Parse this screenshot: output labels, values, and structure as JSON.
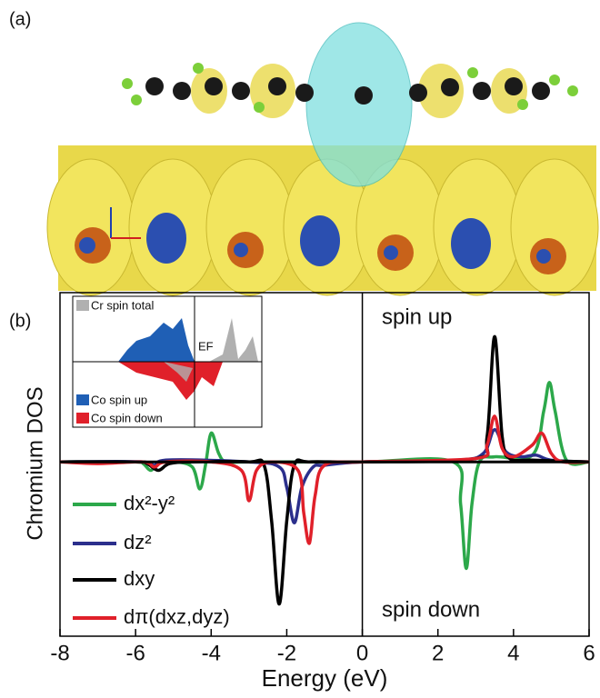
{
  "panel_labels": [
    "(a)",
    "(b)"
  ],
  "chart_data": {
    "type": "line",
    "xlabel": "Energy (eV)",
    "ylabel": "Chromium DOS",
    "annotations": [
      "spin up",
      "spin down"
    ],
    "xlim": [
      -8,
      6
    ],
    "xticks": [
      -8,
      -6,
      -4,
      -2,
      0,
      2,
      4,
      6
    ],
    "ylim": [
      -1.03,
      1
    ],
    "legend": "lower left",
    "series": [
      {
        "name": "dx²-y²",
        "color": "#2ca84a",
        "x": [
          -8,
          -6,
          -5.8,
          -5.6,
          -5.4,
          -5,
          -4.5,
          -4.3,
          -4.15,
          -4.0,
          -3.8,
          -3.6,
          -3,
          0,
          2.4,
          2.6,
          2.75,
          2.9,
          3.1,
          3.5,
          4.5,
          4.8,
          4.95,
          5.1,
          5.4,
          6
        ],
        "values": [
          0,
          0,
          -0.01,
          -0.05,
          -0.01,
          0,
          -0.03,
          -0.16,
          -0.02,
          0.17,
          0.05,
          0,
          0,
          0,
          0,
          -0.25,
          -0.63,
          -0.25,
          0,
          0.03,
          0.04,
          0.3,
          0.47,
          0.3,
          0.01,
          0
        ]
      },
      {
        "name": "dz²",
        "color": "#2b2f8c",
        "x": [
          -8,
          -5.8,
          -5.5,
          -5.2,
          -3,
          -2.2,
          -2.0,
          -1.8,
          -1.6,
          -1.3,
          -1,
          0,
          2.5,
          3.2,
          3.5,
          3.8,
          4.2,
          4.6,
          5,
          6
        ],
        "values": [
          0,
          0,
          -0.04,
          0.01,
          0,
          -0.03,
          -0.15,
          -0.36,
          -0.15,
          -0.03,
          -0.02,
          0,
          0.01,
          0.05,
          0.19,
          0.06,
          0.03,
          0.04,
          0.01,
          0
        ]
      },
      {
        "name": "dxy",
        "color": "#000000",
        "x": [
          -8,
          -6,
          -5.7,
          -5.4,
          -5.1,
          -4.5,
          -3,
          -2.6,
          -2.4,
          -2.2,
          -2.0,
          -1.8,
          -1.4,
          0,
          3.0,
          3.3,
          3.5,
          3.7,
          3.9,
          4.5,
          6
        ],
        "values": [
          0,
          0,
          -0.01,
          -0.05,
          -0.01,
          0,
          0,
          -0.02,
          -0.35,
          -0.84,
          -0.35,
          -0.02,
          0,
          0,
          0.02,
          0.15,
          0.74,
          0.15,
          0.02,
          0.01,
          0
        ]
      },
      {
        "name": "dπ(dxz,dyz)",
        "color": "#e0202a",
        "x": [
          -8,
          -7,
          -5.8,
          -5.5,
          -5.2,
          -4,
          -3.2,
          -3.0,
          -2.8,
          -2.4,
          -1.7,
          -1.55,
          -1.4,
          -1.25,
          -1.0,
          0,
          3.0,
          3.3,
          3.5,
          3.7,
          4.0,
          4.5,
          4.75,
          5.0,
          5.3,
          6
        ],
        "values": [
          0,
          -0.01,
          0,
          -0.03,
          0,
          0,
          -0.05,
          -0.23,
          -0.05,
          0,
          -0.05,
          -0.3,
          -0.48,
          -0.2,
          -0.02,
          0,
          0.02,
          0.1,
          0.27,
          0.08,
          0.03,
          0.1,
          0.17,
          0.05,
          0,
          0
        ]
      }
    ],
    "inset": {
      "legend": [
        "Cr spin total",
        "Co spin up",
        "Co spin down"
      ],
      "fermi_label": "EF"
    }
  }
}
